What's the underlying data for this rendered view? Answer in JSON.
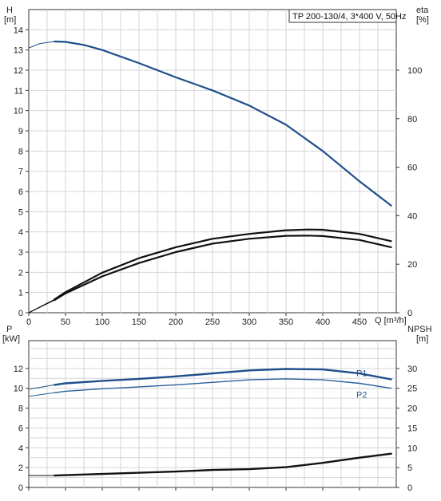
{
  "chart_data": [
    {
      "type": "line",
      "title": "TP 200-130/4, 3*400 V, 50Hz",
      "xlabel": "Q [m³/h]",
      "ylabel_left": [
        "H",
        "[m]"
      ],
      "ylabel_right": [
        "eta",
        "[%]"
      ],
      "xlim": [
        0,
        500
      ],
      "ylim_left": [
        0,
        15
      ],
      "ylim_right": [
        0,
        125
      ],
      "x_ticks": [
        "0",
        "50",
        "100",
        "150",
        "200",
        "250",
        "300",
        "350",
        "400",
        "450"
      ],
      "y_ticks_left": [
        "0",
        "1",
        "2",
        "3",
        "4",
        "5",
        "6",
        "7",
        "8",
        "9",
        "10",
        "11",
        "12",
        "13",
        "14"
      ],
      "y_ticks_right": [
        "0",
        "20",
        "40",
        "60",
        "80",
        "100"
      ],
      "grid": true,
      "series": [
        {
          "axis": "left",
          "color": "#1f4e8c",
          "x": [
            35,
            50,
            75,
            100,
            150,
            200,
            250,
            300,
            350,
            400,
            450,
            493
          ],
          "y": [
            13.42,
            13.4,
            13.25,
            13.0,
            12.35,
            11.65,
            11.0,
            10.25,
            9.3,
            8.0,
            6.5,
            5.3
          ],
          "dashed_extension": {
            "x": [
              0,
              15,
              35
            ],
            "y": [
              13.1,
              13.32,
              13.42
            ]
          }
        },
        {
          "axis": "right",
          "color": "#111111",
          "x": [
            35,
            50,
            100,
            150,
            200,
            250,
            300,
            350,
            380,
            400,
            450,
            493
          ],
          "y": [
            5.5,
            8.5,
            16.5,
            22.5,
            27.0,
            30.5,
            32.5,
            34.0,
            34.3,
            34.2,
            32.5,
            29.5
          ],
          "dashed_extension": {
            "x": [
              0,
              35
            ],
            "y": [
              0,
              5.5
            ]
          }
        },
        {
          "axis": "right",
          "color": "#111111",
          "x": [
            35,
            50,
            100,
            150,
            200,
            250,
            300,
            350,
            380,
            400,
            450,
            493
          ],
          "y": [
            5.2,
            8.0,
            15.0,
            20.5,
            25.0,
            28.5,
            30.5,
            31.7,
            31.8,
            31.6,
            30.0,
            27.0
          ],
          "dashed_extension": {
            "x": [
              0,
              35
            ],
            "y": [
              0,
              5.2
            ]
          }
        }
      ]
    },
    {
      "type": "line",
      "xlabel": "",
      "ylabel_left": [
        "P",
        "[kW]"
      ],
      "ylabel_right": [
        "NPSH",
        "[m]"
      ],
      "xlim": [
        0,
        500
      ],
      "ylim_left": [
        0,
        14
      ],
      "ylim_right": [
        0,
        35
      ],
      "y_ticks_left": [
        "0",
        "2",
        "4",
        "6",
        "8",
        "10",
        "12"
      ],
      "y_ticks_right": [
        "0",
        "5",
        "10",
        "15",
        "20",
        "25",
        "30"
      ],
      "grid": true,
      "series": [
        {
          "name": "P1",
          "axis": "left",
          "color": "#1f4e8c",
          "x": [
            35,
            50,
            100,
            150,
            200,
            250,
            300,
            350,
            400,
            450,
            493
          ],
          "y": [
            10.35,
            10.5,
            10.75,
            10.95,
            11.2,
            11.5,
            11.8,
            11.95,
            11.9,
            11.5,
            10.9
          ],
          "dashed_extension": {
            "x": [
              0,
              35
            ],
            "y": [
              9.9,
              10.35
            ]
          }
        },
        {
          "name": "P2",
          "axis": "left",
          "color": "#2a5f9e",
          "x": [
            35,
            50,
            100,
            150,
            200,
            250,
            300,
            350,
            400,
            450,
            493
          ],
          "y": [
            9.55,
            9.7,
            9.95,
            10.15,
            10.35,
            10.6,
            10.85,
            10.95,
            10.85,
            10.5,
            10.0
          ],
          "dashed_extension": {
            "x": [
              0,
              35
            ],
            "y": [
              9.2,
              9.55
            ]
          }
        },
        {
          "axis": "right",
          "color": "#111111",
          "x": [
            35,
            50,
            100,
            150,
            200,
            250,
            300,
            350,
            400,
            450,
            493
          ],
          "y": [
            3.0,
            3.1,
            3.4,
            3.7,
            4.0,
            4.4,
            4.6,
            5.1,
            6.2,
            7.5,
            8.5
          ],
          "dashed_extension": {
            "x": [
              0,
              35
            ],
            "y": [
              3.0,
              3.0
            ]
          }
        }
      ]
    }
  ]
}
